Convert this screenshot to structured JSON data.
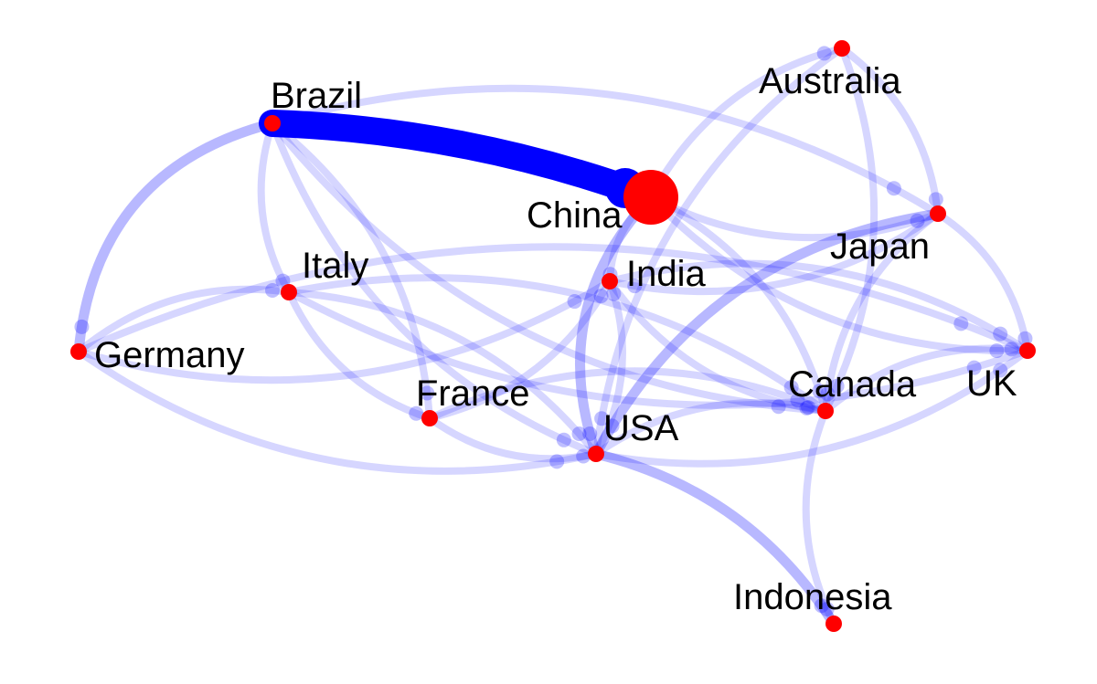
{
  "diagram": {
    "type": "directed-weighted-network",
    "node_color": "#ff0000",
    "edge_color": "#0000ff",
    "nodes": [
      {
        "id": "brazil",
        "label": "Brazil"
      },
      {
        "id": "china",
        "label": "China"
      },
      {
        "id": "australia",
        "label": "Australia"
      },
      {
        "id": "japan",
        "label": "Japan"
      },
      {
        "id": "italy",
        "label": "Italy"
      },
      {
        "id": "india",
        "label": "India"
      },
      {
        "id": "germany",
        "label": "Germany"
      },
      {
        "id": "france",
        "label": "France"
      },
      {
        "id": "usa",
        "label": "USA"
      },
      {
        "id": "canada",
        "label": "Canada"
      },
      {
        "id": "uk",
        "label": "UK"
      },
      {
        "id": "indonesia",
        "label": "Indonesia"
      }
    ],
    "edges": [
      {
        "from": "brazil",
        "to": "china",
        "weight": 10
      },
      {
        "from": "brazil",
        "to": "germany",
        "weight": 2
      },
      {
        "from": "brazil",
        "to": "italy",
        "weight": 1
      },
      {
        "from": "brazil",
        "to": "france",
        "weight": 1
      },
      {
        "from": "brazil",
        "to": "usa",
        "weight": 1
      },
      {
        "from": "brazil",
        "to": "japan",
        "weight": 1
      },
      {
        "from": "brazil",
        "to": "canada",
        "weight": 1
      },
      {
        "from": "china",
        "to": "usa",
        "weight": 2
      },
      {
        "from": "china",
        "to": "japan",
        "weight": 1
      },
      {
        "from": "china",
        "to": "australia",
        "weight": 1
      },
      {
        "from": "china",
        "to": "uk",
        "weight": 1
      },
      {
        "from": "china",
        "to": "canada",
        "weight": 1
      },
      {
        "from": "china",
        "to": "india",
        "weight": 1
      },
      {
        "from": "australia",
        "to": "japan",
        "weight": 1
      },
      {
        "from": "australia",
        "to": "usa",
        "weight": 1
      },
      {
        "from": "australia",
        "to": "canada",
        "weight": 1
      },
      {
        "from": "japan",
        "to": "usa",
        "weight": 2
      },
      {
        "from": "japan",
        "to": "uk",
        "weight": 1
      },
      {
        "from": "japan",
        "to": "canada",
        "weight": 1
      },
      {
        "from": "japan",
        "to": "india",
        "weight": 1
      },
      {
        "from": "germany",
        "to": "usa",
        "weight": 1
      },
      {
        "from": "germany",
        "to": "uk",
        "weight": 1
      },
      {
        "from": "germany",
        "to": "india",
        "weight": 1
      },
      {
        "from": "germany",
        "to": "italy",
        "weight": 1
      },
      {
        "from": "italy",
        "to": "france",
        "weight": 1
      },
      {
        "from": "italy",
        "to": "usa",
        "weight": 1
      },
      {
        "from": "italy",
        "to": "uk",
        "weight": 1
      },
      {
        "from": "italy",
        "to": "canada",
        "weight": 1
      },
      {
        "from": "france",
        "to": "usa",
        "weight": 1
      },
      {
        "from": "france",
        "to": "canada",
        "weight": 1
      },
      {
        "from": "france",
        "to": "india",
        "weight": 1
      },
      {
        "from": "usa",
        "to": "canada",
        "weight": 1
      },
      {
        "from": "usa",
        "to": "uk",
        "weight": 1
      },
      {
        "from": "usa",
        "to": "indonesia",
        "weight": 2
      },
      {
        "from": "usa",
        "to": "india",
        "weight": 1
      },
      {
        "from": "canada",
        "to": "uk",
        "weight": 1
      },
      {
        "from": "canada",
        "to": "indonesia",
        "weight": 1
      },
      {
        "from": "india",
        "to": "uk",
        "weight": 1
      },
      {
        "from": "india",
        "to": "canada",
        "weight": 1
      }
    ]
  }
}
